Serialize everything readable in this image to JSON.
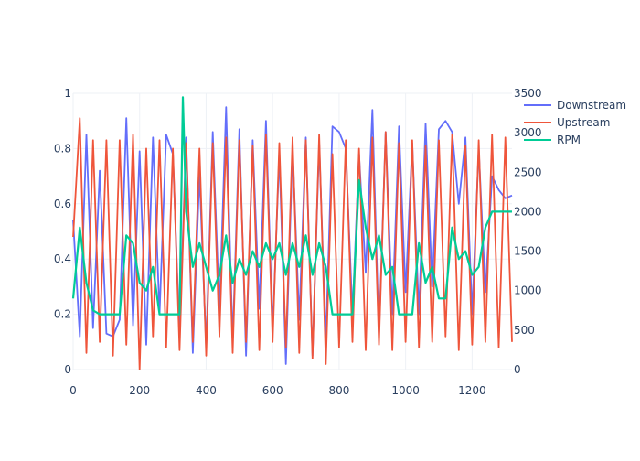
{
  "chart_data": {
    "type": "line",
    "title": "",
    "xlabel": "",
    "ylabel": "",
    "y2label": "",
    "xlim": [
      0,
      1320
    ],
    "ylim": [
      0,
      1
    ],
    "y2lim": [
      0,
      3500
    ],
    "x_ticks": [
      0,
      200,
      400,
      600,
      800,
      1000,
      1200
    ],
    "x_tick_labels": [
      "0",
      "200",
      "400",
      "600",
      "800",
      "1000",
      "1200"
    ],
    "y_ticks": [
      0,
      0.2,
      0.4,
      0.6,
      0.8,
      1
    ],
    "y_tick_labels": [
      "0",
      "0.2",
      "0.4",
      "0.6",
      "0.8",
      "1"
    ],
    "y2_ticks": [
      0,
      500,
      1000,
      1500,
      2000,
      2500,
      3000,
      3500
    ],
    "y2_tick_labels": [
      "0",
      "500",
      "1000",
      "1500",
      "2000",
      "2500",
      "3000",
      "3500"
    ],
    "grid": true,
    "legend_position": "top-right",
    "legend": [
      "Downstream",
      "Upstream",
      "RPM"
    ],
    "series": [
      {
        "name": "Downstream",
        "color": "#636efa",
        "axis": "y",
        "x": [
          0,
          20,
          40,
          60,
          80,
          100,
          120,
          140,
          160,
          180,
          200,
          220,
          240,
          260,
          280,
          300,
          320,
          340,
          360,
          380,
          400,
          420,
          440,
          460,
          480,
          500,
          520,
          540,
          560,
          580,
          600,
          620,
          640,
          660,
          680,
          700,
          720,
          740,
          760,
          780,
          800,
          820,
          840,
          860,
          880,
          900,
          920,
          940,
          960,
          980,
          1000,
          1020,
          1040,
          1060,
          1080,
          1100,
          1120,
          1140,
          1160,
          1180,
          1200,
          1220,
          1240,
          1260,
          1280,
          1300,
          1320
        ],
        "y": [
          0.54,
          0.12,
          0.85,
          0.15,
          0.72,
          0.13,
          0.12,
          0.18,
          0.91,
          0.16,
          0.79,
          0.09,
          0.84,
          0.2,
          0.85,
          0.78,
          0.12,
          0.84,
          0.06,
          0.71,
          0.08,
          0.86,
          0.21,
          0.95,
          0.1,
          0.87,
          0.05,
          0.83,
          0.22,
          0.9,
          0.14,
          0.78,
          0.02,
          0.8,
          0.18,
          0.84,
          0.05,
          0.82,
          0.1,
          0.88,
          0.86,
          0.8,
          0.2,
          0.78,
          0.35,
          0.94,
          0.12,
          0.86,
          0.2,
          0.88,
          0.28,
          0.82,
          0.2,
          0.89,
          0.3,
          0.87,
          0.9,
          0.86,
          0.6,
          0.84,
          0.2,
          0.8,
          0.28,
          0.7,
          0.65,
          0.62,
          0.63
        ]
      },
      {
        "name": "Upstream",
        "color": "#ef553b",
        "axis": "y",
        "x": [
          0,
          20,
          40,
          60,
          80,
          100,
          120,
          140,
          160,
          180,
          200,
          220,
          240,
          260,
          280,
          300,
          320,
          340,
          360,
          380,
          400,
          420,
          440,
          460,
          480,
          500,
          520,
          540,
          560,
          580,
          600,
          620,
          640,
          660,
          680,
          700,
          720,
          740,
          760,
          780,
          800,
          820,
          840,
          860,
          880,
          900,
          920,
          940,
          960,
          980,
          1000,
          1020,
          1040,
          1060,
          1080,
          1100,
          1120,
          1140,
          1160,
          1180,
          1200,
          1220,
          1240,
          1260,
          1280,
          1300,
          1320
        ],
        "y": [
          0.48,
          0.91,
          0.06,
          0.83,
          0.1,
          0.83,
          0.05,
          0.83,
          0.09,
          0.85,
          0.0,
          0.8,
          0.12,
          0.83,
          0.08,
          0.8,
          0.07,
          0.82,
          0.1,
          0.8,
          0.05,
          0.82,
          0.12,
          0.84,
          0.06,
          0.83,
          0.1,
          0.81,
          0.07,
          0.85,
          0.1,
          0.82,
          0.08,
          0.84,
          0.06,
          0.83,
          0.04,
          0.85,
          0.02,
          0.78,
          0.08,
          0.83,
          0.1,
          0.8,
          0.07,
          0.84,
          0.09,
          0.86,
          0.07,
          0.82,
          0.1,
          0.83,
          0.08,
          0.81,
          0.1,
          0.83,
          0.12,
          0.85,
          0.07,
          0.81,
          0.09,
          0.83,
          0.1,
          0.85,
          0.08,
          0.84,
          0.1
        ]
      },
      {
        "name": "RPM",
        "color": "#00cc96",
        "axis": "y2",
        "x": [
          0,
          20,
          40,
          60,
          80,
          100,
          120,
          140,
          160,
          180,
          200,
          220,
          240,
          260,
          280,
          300,
          320,
          330,
          340,
          360,
          380,
          400,
          420,
          440,
          460,
          480,
          500,
          520,
          540,
          560,
          580,
          600,
          620,
          640,
          660,
          680,
          700,
          720,
          740,
          760,
          780,
          800,
          820,
          840,
          860,
          880,
          900,
          920,
          940,
          960,
          980,
          1000,
          1020,
          1040,
          1060,
          1080,
          1100,
          1120,
          1140,
          1160,
          1180,
          1200,
          1220,
          1240,
          1260,
          1280,
          1300,
          1320
        ],
        "y": [
          900,
          1800,
          1100,
          750,
          700,
          700,
          700,
          700,
          1700,
          1600,
          1100,
          1000,
          1300,
          700,
          700,
          700,
          700,
          3450,
          2000,
          1300,
          1600,
          1300,
          1000,
          1200,
          1700,
          1100,
          1400,
          1200,
          1500,
          1300,
          1600,
          1400,
          1600,
          1200,
          1600,
          1300,
          1700,
          1200,
          1600,
          1300,
          700,
          700,
          700,
          700,
          2400,
          1800,
          1400,
          1700,
          1200,
          1300,
          700,
          700,
          700,
          1600,
          1100,
          1300,
          900,
          900,
          1800,
          1400,
          1500,
          1200,
          1300,
          1800,
          2000,
          2000,
          2000,
          2000
        ]
      }
    ]
  }
}
